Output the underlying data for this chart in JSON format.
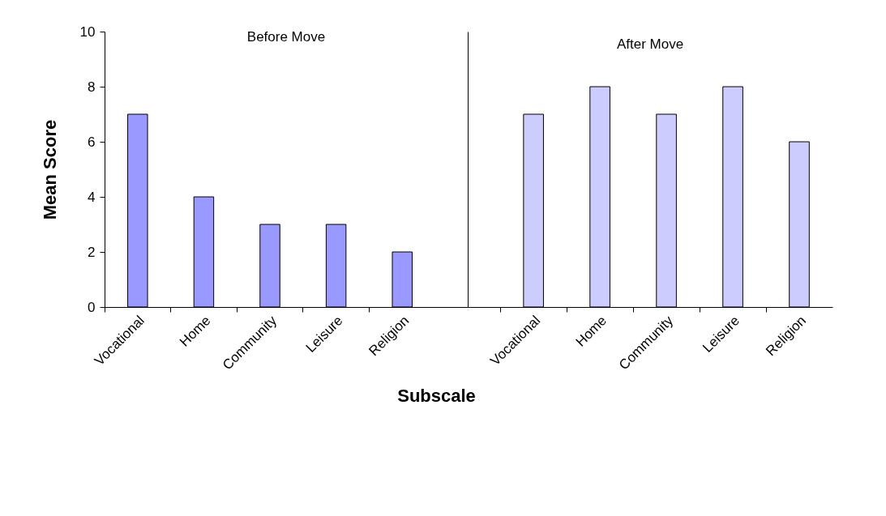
{
  "chart_data": [
    {
      "type": "bar",
      "title": "Before Move",
      "ylabel": "Mean Score",
      "xlabel": "Subscale",
      "categories": [
        "Vocational",
        "Home",
        "Community",
        "Leisure",
        "Religion"
      ],
      "values": [
        7,
        4,
        3,
        3,
        2
      ],
      "color": "#9999ff",
      "ylim": [
        0,
        10
      ],
      "yticks": [
        0,
        2,
        4,
        6,
        8,
        10
      ],
      "grid": false
    },
    {
      "type": "bar",
      "title": "After Move",
      "categories": [
        "Vocational",
        "Home",
        "Community",
        "Leisure",
        "Religion"
      ],
      "values": [
        7,
        8,
        7,
        8,
        6
      ],
      "color": "#ccccff",
      "ylim": [
        0,
        10
      ],
      "yticks": [
        0,
        2,
        4,
        6,
        8,
        10
      ],
      "grid": false,
      "tick_labels": "x"
    }
  ]
}
